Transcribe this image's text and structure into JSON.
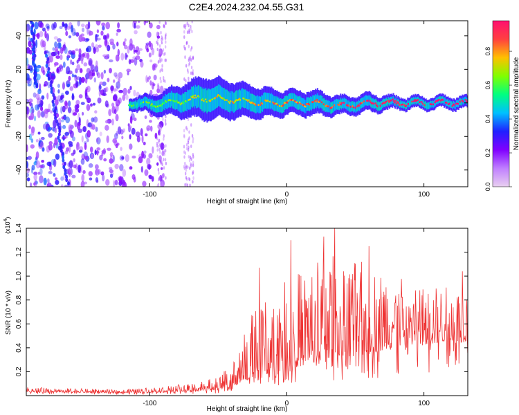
{
  "title": "C2E4.2024.232.04.55.G31",
  "chart_data": [
    {
      "type": "heatmap",
      "name": "spectrogram",
      "xlabel": "Height of straight line (km)",
      "ylabel": "Frequency (Hz)",
      "xlim": [
        -190,
        132
      ],
      "ylim": [
        -50,
        49
      ],
      "x_ticks": [
        -100,
        0,
        100
      ],
      "y_ticks": [
        -40,
        -20,
        0,
        20,
        40
      ],
      "colorbar": {
        "label": "Normalized spectral amplitude",
        "range": [
          0,
          0.98
        ],
        "ticks": [
          0.0,
          0.2,
          0.4,
          0.6,
          0.8
        ],
        "colors": [
          "#e8d0f0",
          "#c080ff",
          "#8000ff",
          "#2020ff",
          "#00c0ff",
          "#00ff80",
          "#80ff00",
          "#ffc000",
          "#ff4040",
          "#ff1070"
        ]
      },
      "noise_region_x": [
        -190,
        -95
      ],
      "band_trend": [
        {
          "x": -115,
          "center": 0,
          "halfwidth": 2
        },
        {
          "x": -100,
          "center": -1,
          "halfwidth": 3
        },
        {
          "x": -80,
          "center": 1,
          "halfwidth": 5
        },
        {
          "x": -60,
          "center": 3,
          "halfwidth": 7
        },
        {
          "x": -40,
          "center": 2,
          "halfwidth": 6
        },
        {
          "x": -20,
          "center": 0,
          "halfwidth": 5
        },
        {
          "x": 0,
          "center": 0,
          "halfwidth": 4
        },
        {
          "x": 20,
          "center": 0,
          "halfwidth": 4
        },
        {
          "x": 40,
          "center": -2,
          "halfwidth": 3
        },
        {
          "x": 60,
          "center": 0,
          "halfwidth": 3
        },
        {
          "x": 80,
          "center": 0,
          "halfwidth": 2
        },
        {
          "x": 100,
          "center": 0,
          "halfwidth": 2
        },
        {
          "x": 130,
          "center": 0,
          "halfwidth": 2
        }
      ],
      "streaks": [
        {
          "x": [
            -176,
            -160
          ],
          "y": [
            30,
            -48
          ]
        },
        {
          "x": [
            -186,
            -183
          ],
          "y": [
            48,
            10
          ]
        }
      ]
    },
    {
      "type": "line",
      "name": "snr",
      "xlabel": "Height of straight line (km)",
      "ylabel": "SNR (10 * v/v)",
      "yscale_label": "(x10",
      "yscale_exp": "4",
      "xlim": [
        -190,
        132
      ],
      "ylim": [
        0,
        1.4
      ],
      "x_ticks": [
        -100,
        0,
        100
      ],
      "y_ticks": [
        0.2,
        0.4,
        0.6,
        0.8,
        1.0,
        1.2,
        1.4
      ],
      "y_tick_labels": [
        "0.2",
        "0.4",
        "0.6",
        "0.8",
        "1.0",
        "1.2",
        "1.4"
      ],
      "color": "#ee3333",
      "envelope": [
        {
          "x": -190,
          "base": 0.03,
          "spread": 0.04
        },
        {
          "x": -120,
          "base": 0.02,
          "spread": 0.03
        },
        {
          "x": -80,
          "base": 0.03,
          "spread": 0.06
        },
        {
          "x": -50,
          "base": 0.05,
          "spread": 0.1
        },
        {
          "x": -38,
          "base": 0.08,
          "spread": 0.22
        },
        {
          "x": -25,
          "base": 0.15,
          "spread": 0.55
        },
        {
          "x": 0,
          "base": 0.22,
          "spread": 0.75
        },
        {
          "x": 30,
          "base": 0.3,
          "spread": 0.9
        },
        {
          "x": 60,
          "base": 0.35,
          "spread": 0.75
        },
        {
          "x": 100,
          "base": 0.42,
          "spread": 0.5
        },
        {
          "x": 132,
          "base": 0.45,
          "spread": 0.45
        }
      ],
      "peaks": [
        {
          "x": 27,
          "y": 1.33
        },
        {
          "x": 35,
          "y": 1.4
        },
        {
          "x": 60,
          "y": 1.25
        },
        {
          "x": 3,
          "y": 1.3
        },
        {
          "x": -20,
          "y": 1.07
        },
        {
          "x": 128,
          "y": 1.04
        }
      ]
    }
  ]
}
